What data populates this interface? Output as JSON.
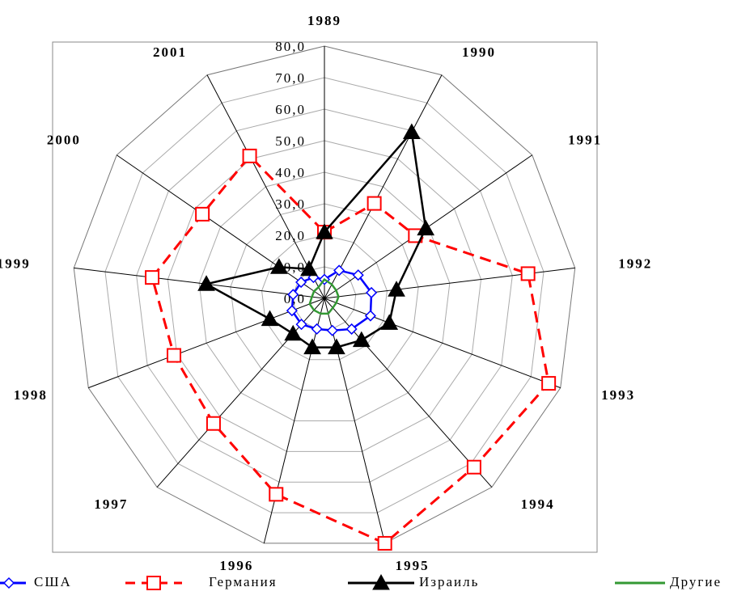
{
  "chart_data": {
    "type": "radar",
    "categories": [
      "1989",
      "1990",
      "1991",
      "1992",
      "1993",
      "1994",
      "1995",
      "1996",
      "1997",
      "1998",
      "1999",
      "2000",
      "2001"
    ],
    "ylim": [
      0,
      80
    ],
    "yticks": [
      {
        "value": 0,
        "label": "0,0"
      },
      {
        "value": 10,
        "label": "10,0"
      },
      {
        "value": 20,
        "label": "20,0"
      },
      {
        "value": 30,
        "label": "30,0"
      },
      {
        "value": 40,
        "label": "40,0"
      },
      {
        "value": 50,
        "label": "50,0"
      },
      {
        "value": 60,
        "label": "60,0"
      },
      {
        "value": 70,
        "label": "70,0"
      },
      {
        "value": 80,
        "label": "80,0"
      }
    ],
    "grid": true,
    "series": [
      {
        "name": "США",
        "color": "#0000ff",
        "marker": "diamond",
        "dashed": false,
        "values": [
          6,
          10,
          13,
          15,
          15.6,
          13,
          10.5,
          10,
          11,
          11,
          10,
          9,
          7.5
        ]
      },
      {
        "name": "Германия",
        "color": "#ff0000",
        "marker": "square",
        "dashed": true,
        "values": [
          21,
          34,
          35,
          65,
          76,
          71.5,
          80,
          64,
          53,
          51,
          55,
          47,
          51
        ]
      },
      {
        "name": "Израиль",
        "color": "#000000",
        "marker": "triangle",
        "dashed": false,
        "values": [
          21,
          59.5,
          39,
          23,
          22,
          17.7,
          16,
          16,
          15,
          18.5,
          37.7,
          17.5,
          10.5
        ]
      },
      {
        "name": "Другие",
        "color": "#339933",
        "marker": "none",
        "dashed": false,
        "values": [
          6,
          5,
          4.5,
          4.5,
          4,
          4,
          5,
          5,
          5,
          5,
          4,
          4,
          4
        ]
      }
    ]
  }
}
